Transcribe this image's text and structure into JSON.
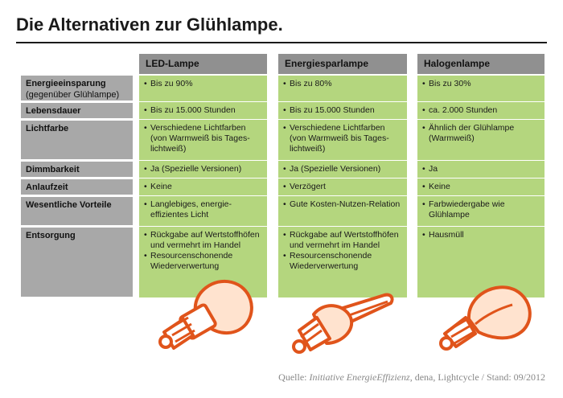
{
  "title": "Die Alternativen zur Glühlampe.",
  "columns": [
    "LED-Lampe",
    "Energiesparlampe",
    "Halogenlampe"
  ],
  "rows": [
    {
      "label": "Energieeinsparung",
      "sublabel": "(gegenüber Glühlampe)",
      "cells": [
        [
          "Bis zu 90%"
        ],
        [
          "Bis zu 80%"
        ],
        [
          "Bis zu 30%"
        ]
      ]
    },
    {
      "label": "Lebensdauer",
      "cells": [
        [
          "Bis zu 15.000 Stunden"
        ],
        [
          "Bis zu 15.000 Stunden"
        ],
        [
          "ca. 2.000 Stunden"
        ]
      ]
    },
    {
      "label": "Lichtfarbe",
      "cells": [
        [
          "Verschiedene Lichtfarben (von Warmweiß bis Tages-lichtweiß)"
        ],
        [
          "Verschiedene Lichtfarben (von Warmweiß bis Tages-lichtweiß)"
        ],
        [
          "Ähnlich der Glühlampe (Warmweiß)"
        ]
      ]
    },
    {
      "label": "Dimmbarkeit",
      "cells": [
        [
          "Ja (Spezielle Versionen)"
        ],
        [
          "Ja (Spezielle Versionen)"
        ],
        [
          "Ja"
        ]
      ]
    },
    {
      "label": "Anlaufzeit",
      "cells": [
        [
          "Keine"
        ],
        [
          "Verzögert"
        ],
        [
          "Keine"
        ]
      ]
    },
    {
      "label": "Wesentliche Vorteile",
      "cells": [
        [
          "Langlebiges, energie-effizientes Licht"
        ],
        [
          "Gute Kosten-Nutzen-Relation"
        ],
        [
          "Farbwiedergabe wie Glühlampe"
        ]
      ]
    },
    {
      "label": "Entsorgung",
      "cells": [
        [
          "Rückgabe auf Wertstoffhöfen und vermehrt im Handel",
          "Resourcenschonende Wiederverwertung"
        ],
        [
          "Rückgabe auf Wertstoffhöfen und vermehrt im Handel",
          "Resourcenschonende Wiederverwertung"
        ],
        [
          "Hausmüll"
        ]
      ]
    }
  ],
  "source": {
    "prefix": "Quelle: ",
    "italic": "Initiative EnergieEffizienz",
    "suffix": ", dena, Lightcycle / Stand: 09/2012"
  },
  "colors": {
    "header": "#909090",
    "label": "#a8a8a8",
    "cell": "#b4d67e",
    "bulb_stroke": "#e0541b",
    "bulb_fill": "#ffe3cf"
  },
  "icons": [
    "led-bulb-icon",
    "energy-saving-bulb-icon",
    "halogen-bulb-icon"
  ]
}
